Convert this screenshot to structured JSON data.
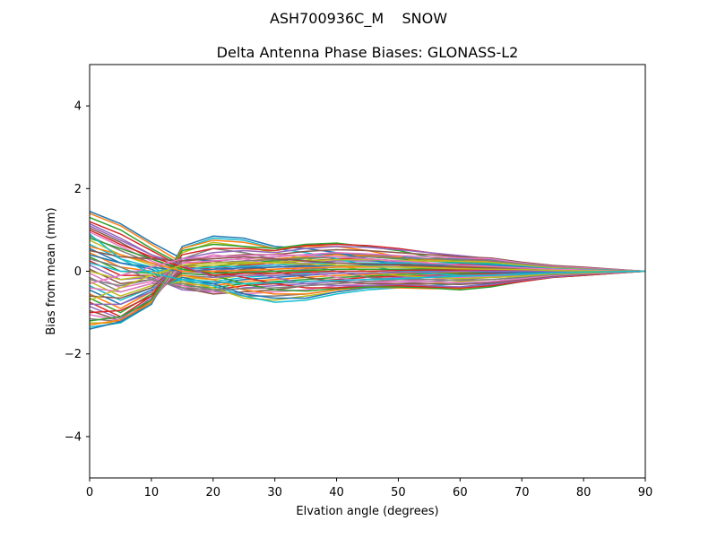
{
  "figure": {
    "suptitle": "ASH700936C_M    SNOW"
  },
  "chart_data": {
    "type": "line",
    "title": "Delta Antenna Phase Biases: GLONASS-L2",
    "xlabel": "Elvation angle (degrees)",
    "ylabel": "Bias from mean (mm)",
    "xlim": [
      0,
      90
    ],
    "ylim": [
      -5,
      5
    ],
    "xticks": [
      0,
      10,
      20,
      30,
      40,
      50,
      60,
      70,
      80,
      90
    ],
    "yticks": [
      -4,
      -2,
      0,
      2,
      4
    ],
    "ytick_labels": [
      "−4",
      "−2",
      "0",
      "2",
      "4"
    ],
    "grid": false,
    "legend": "none",
    "x": [
      0,
      5,
      10,
      15,
      20,
      25,
      30,
      35,
      40,
      45,
      50,
      55,
      60,
      65,
      70,
      75,
      80,
      85,
      90
    ],
    "colors": [
      "#1f77b4",
      "#ff7f0e",
      "#2ca02c",
      "#d62728",
      "#9467bd",
      "#8c564b",
      "#e377c2",
      "#7f7f7f",
      "#bcbd22",
      "#17becf"
    ],
    "series": [
      {
        "values": [
          1.45,
          1.15,
          0.7,
          0.3,
          0.25,
          0.3,
          0.35,
          0.4,
          0.42,
          0.4,
          0.35,
          0.3,
          0.3,
          0.28,
          0.2,
          0.12,
          0.08,
          0.04,
          0.0
        ]
      },
      {
        "values": [
          1.4,
          1.1,
          0.65,
          0.2,
          0.2,
          0.25,
          0.3,
          0.35,
          0.4,
          0.38,
          0.33,
          0.28,
          0.25,
          0.25,
          0.18,
          0.1,
          0.07,
          0.03,
          0.0
        ]
      },
      {
        "values": [
          1.3,
          1.0,
          0.55,
          0.15,
          0.1,
          0.2,
          0.25,
          0.3,
          0.35,
          0.35,
          0.3,
          0.25,
          0.22,
          0.2,
          0.15,
          0.1,
          0.05,
          0.02,
          0.0
        ]
      },
      {
        "values": [
          1.2,
          0.9,
          0.5,
          0.1,
          0.05,
          0.15,
          0.2,
          0.25,
          0.3,
          0.3,
          0.25,
          0.2,
          0.18,
          0.15,
          0.12,
          0.08,
          0.04,
          0.02,
          0.0
        ]
      },
      {
        "values": [
          1.15,
          0.8,
          0.4,
          0.05,
          0.0,
          0.1,
          0.15,
          0.2,
          0.25,
          0.25,
          0.22,
          0.18,
          0.15,
          0.12,
          0.1,
          0.06,
          0.03,
          0.01,
          0.0
        ]
      },
      {
        "values": [
          1.05,
          0.7,
          0.3,
          0.0,
          -0.05,
          0.05,
          0.1,
          0.15,
          0.2,
          0.2,
          0.18,
          0.15,
          0.12,
          0.1,
          0.08,
          0.05,
          0.02,
          0.01,
          0.0
        ]
      },
      {
        "values": [
          0.95,
          0.6,
          0.25,
          -0.05,
          -0.1,
          0.0,
          0.05,
          0.1,
          0.15,
          0.15,
          0.14,
          0.12,
          0.1,
          0.08,
          0.06,
          0.04,
          0.02,
          0.01,
          0.0
        ]
      },
      {
        "values": [
          0.85,
          0.5,
          0.2,
          -0.1,
          -0.15,
          -0.05,
          0.0,
          0.05,
          0.1,
          0.1,
          0.1,
          0.08,
          0.08,
          0.06,
          0.05,
          0.03,
          0.01,
          0.0,
          0.0
        ]
      },
      {
        "values": [
          0.75,
          0.4,
          0.15,
          -0.15,
          -0.2,
          -0.1,
          -0.05,
          0.0,
          0.05,
          0.05,
          0.05,
          0.05,
          0.05,
          0.04,
          0.03,
          0.02,
          0.01,
          0.0,
          0.0
        ]
      },
      {
        "values": [
          0.65,
          0.3,
          0.1,
          -0.2,
          -0.25,
          -0.15,
          -0.1,
          -0.05,
          0.0,
          0.0,
          0.02,
          0.02,
          0.02,
          0.02,
          0.02,
          0.01,
          0.0,
          0.0,
          0.0
        ]
      },
      {
        "values": [
          0.55,
          0.2,
          0.05,
          -0.25,
          -0.3,
          -0.2,
          -0.15,
          -0.1,
          -0.05,
          -0.05,
          -0.02,
          -0.01,
          0.0,
          0.0,
          0.0,
          0.0,
          0.0,
          0.0,
          0.0
        ]
      },
      {
        "values": [
          0.45,
          0.1,
          0.0,
          -0.3,
          -0.35,
          -0.25,
          -0.2,
          -0.15,
          -0.1,
          -0.08,
          -0.05,
          -0.03,
          -0.02,
          -0.02,
          -0.02,
          -0.01,
          -0.01,
          0.0,
          0.0
        ]
      },
      {
        "values": [
          0.35,
          0.0,
          -0.05,
          -0.35,
          -0.4,
          -0.3,
          -0.25,
          -0.2,
          -0.15,
          -0.12,
          -0.08,
          -0.06,
          -0.05,
          -0.04,
          -0.03,
          -0.02,
          -0.01,
          0.0,
          0.0
        ]
      },
      {
        "values": [
          0.25,
          -0.1,
          -0.1,
          -0.4,
          -0.45,
          -0.35,
          -0.3,
          -0.25,
          -0.2,
          -0.15,
          -0.12,
          -0.1,
          -0.08,
          -0.06,
          -0.05,
          -0.03,
          -0.02,
          -0.01,
          0.0
        ]
      },
      {
        "values": [
          0.15,
          -0.2,
          -0.15,
          -0.45,
          -0.5,
          -0.4,
          -0.35,
          -0.3,
          -0.25,
          -0.2,
          -0.15,
          -0.12,
          -0.1,
          -0.08,
          -0.06,
          -0.04,
          -0.02,
          -0.01,
          0.0
        ]
      },
      {
        "values": [
          0.05,
          -0.3,
          -0.2,
          -0.4,
          -0.55,
          -0.5,
          -0.45,
          -0.35,
          -0.3,
          -0.25,
          -0.2,
          -0.15,
          -0.12,
          -0.1,
          -0.08,
          -0.05,
          -0.03,
          -0.01,
          0.0
        ]
      },
      {
        "values": [
          -0.05,
          -0.4,
          -0.25,
          -0.35,
          -0.5,
          -0.55,
          -0.5,
          -0.45,
          -0.35,
          -0.3,
          -0.25,
          -0.2,
          -0.15,
          -0.12,
          -0.1,
          -0.06,
          -0.04,
          -0.02,
          0.0
        ]
      },
      {
        "values": [
          -0.15,
          -0.5,
          -0.3,
          -0.3,
          -0.45,
          -0.6,
          -0.6,
          -0.55,
          -0.45,
          -0.35,
          -0.3,
          -0.25,
          -0.2,
          -0.15,
          -0.12,
          -0.08,
          -0.05,
          -0.02,
          0.0
        ]
      },
      {
        "values": [
          -0.25,
          -0.6,
          -0.35,
          -0.25,
          -0.4,
          -0.65,
          -0.7,
          -0.6,
          -0.5,
          -0.4,
          -0.35,
          -0.3,
          -0.25,
          -0.2,
          -0.15,
          -0.1,
          -0.06,
          -0.03,
          0.0
        ]
      },
      {
        "values": [
          -0.35,
          -0.7,
          -0.4,
          -0.2,
          -0.35,
          -0.6,
          -0.75,
          -0.7,
          -0.55,
          -0.45,
          -0.4,
          -0.35,
          -0.3,
          -0.25,
          -0.18,
          -0.12,
          -0.08,
          -0.04,
          0.0
        ]
      },
      {
        "values": [
          -0.45,
          -0.8,
          -0.45,
          -0.15,
          -0.3,
          -0.55,
          -0.65,
          -0.65,
          -0.5,
          -0.4,
          -0.38,
          -0.4,
          -0.38,
          -0.3,
          -0.2,
          -0.12,
          -0.08,
          -0.04,
          0.0
        ]
      },
      {
        "values": [
          -0.55,
          -0.9,
          -0.5,
          -0.1,
          -0.2,
          -0.45,
          -0.55,
          -0.55,
          -0.45,
          -0.38,
          -0.4,
          -0.42,
          -0.42,
          -0.35,
          -0.22,
          -0.14,
          -0.1,
          -0.05,
          0.0
        ]
      },
      {
        "values": [
          -0.65,
          -1.0,
          -0.55,
          -0.05,
          -0.1,
          -0.3,
          -0.45,
          -0.48,
          -0.42,
          -0.38,
          -0.38,
          -0.4,
          -0.45,
          -0.38,
          -0.25,
          -0.15,
          -0.1,
          -0.05,
          0.0
        ]
      },
      {
        "values": [
          -0.75,
          -1.1,
          -0.6,
          0.0,
          0.0,
          -0.15,
          -0.3,
          -0.4,
          -0.4,
          -0.35,
          -0.35,
          -0.38,
          -0.4,
          -0.35,
          -0.25,
          -0.15,
          -0.1,
          -0.05,
          0.0
        ]
      },
      {
        "values": [
          -0.85,
          -1.15,
          -0.65,
          0.05,
          0.1,
          0.0,
          -0.15,
          -0.3,
          -0.35,
          -0.35,
          -0.32,
          -0.35,
          -0.38,
          -0.32,
          -0.22,
          -0.14,
          -0.08,
          -0.04,
          0.0
        ]
      },
      {
        "values": [
          -0.95,
          -1.2,
          -0.7,
          0.1,
          0.25,
          0.15,
          0.0,
          -0.15,
          -0.25,
          -0.3,
          -0.3,
          -0.3,
          -0.32,
          -0.28,
          -0.2,
          -0.12,
          -0.07,
          -0.03,
          0.0
        ]
      },
      {
        "values": [
          -1.05,
          -1.2,
          -0.75,
          0.2,
          0.4,
          0.3,
          0.15,
          0.0,
          -0.15,
          -0.25,
          -0.25,
          -0.25,
          -0.28,
          -0.25,
          -0.18,
          -0.1,
          -0.06,
          -0.03,
          0.0
        ]
      },
      {
        "values": [
          -1.15,
          -1.22,
          -0.75,
          0.3,
          0.55,
          0.45,
          0.3,
          0.15,
          0.0,
          -0.15,
          -0.2,
          -0.2,
          -0.22,
          -0.2,
          -0.15,
          -0.08,
          -0.05,
          -0.02,
          0.0
        ]
      },
      {
        "values": [
          -1.25,
          -1.25,
          -0.78,
          0.45,
          0.7,
          0.6,
          0.45,
          0.3,
          0.15,
          0.0,
          -0.1,
          -0.15,
          -0.18,
          -0.15,
          -0.12,
          -0.06,
          -0.04,
          -0.02,
          0.0
        ]
      },
      {
        "values": [
          -1.35,
          -1.25,
          -0.8,
          0.55,
          0.8,
          0.75,
          0.55,
          0.45,
          0.3,
          0.15,
          0.0,
          -0.05,
          -0.1,
          -0.1,
          -0.08,
          -0.04,
          -0.02,
          -0.01,
          0.0
        ]
      },
      {
        "values": [
          -1.4,
          -1.22,
          -0.8,
          0.6,
          0.85,
          0.8,
          0.6,
          0.55,
          0.45,
          0.3,
          0.15,
          0.05,
          0.0,
          -0.02,
          -0.03,
          -0.02,
          -0.01,
          0.0,
          0.0
        ]
      },
      {
        "values": [
          -1.3,
          -1.18,
          -0.75,
          0.55,
          0.75,
          0.7,
          0.55,
          0.6,
          0.6,
          0.5,
          0.35,
          0.2,
          0.1,
          0.05,
          0.02,
          0.01,
          0.0,
          0.0,
          0.0
        ]
      },
      {
        "values": [
          -1.2,
          -1.1,
          -0.7,
          0.5,
          0.65,
          0.6,
          0.55,
          0.65,
          0.68,
          0.6,
          0.5,
          0.35,
          0.25,
          0.15,
          0.08,
          0.05,
          0.03,
          0.01,
          0.0
        ]
      },
      {
        "values": [
          -1.0,
          -0.95,
          -0.6,
          0.4,
          0.55,
          0.55,
          0.5,
          0.62,
          0.65,
          0.62,
          0.55,
          0.45,
          0.35,
          0.25,
          0.15,
          0.1,
          0.06,
          0.03,
          0.0
        ]
      },
      {
        "values": [
          -0.8,
          -0.8,
          -0.5,
          0.3,
          0.45,
          0.5,
          0.45,
          0.55,
          0.6,
          0.58,
          0.52,
          0.45,
          0.38,
          0.3,
          0.2,
          0.12,
          0.08,
          0.04,
          0.0
        ]
      },
      {
        "values": [
          -0.6,
          -0.65,
          -0.4,
          0.25,
          0.35,
          0.4,
          0.4,
          0.48,
          0.52,
          0.5,
          0.45,
          0.4,
          0.35,
          0.32,
          0.22,
          0.14,
          0.1,
          0.05,
          0.0
        ]
      },
      {
        "values": [
          -0.4,
          -0.5,
          -0.3,
          0.2,
          0.25,
          0.3,
          0.35,
          0.4,
          0.45,
          0.42,
          0.38,
          0.35,
          0.32,
          0.3,
          0.2,
          0.12,
          0.08,
          0.04,
          0.0
        ]
      },
      {
        "values": [
          -0.2,
          -0.35,
          -0.2,
          0.15,
          0.2,
          0.25,
          0.28,
          0.32,
          0.35,
          0.35,
          0.32,
          0.3,
          0.28,
          0.26,
          0.18,
          0.1,
          0.06,
          0.03,
          0.0
        ]
      },
      {
        "values": [
          0.0,
          -0.2,
          -0.1,
          0.1,
          0.15,
          0.18,
          0.22,
          0.25,
          0.28,
          0.28,
          0.26,
          0.25,
          0.24,
          0.22,
          0.15,
          0.08,
          0.05,
          0.02,
          0.0
        ]
      },
      {
        "values": [
          0.2,
          0.0,
          0.0,
          0.05,
          0.1,
          0.12,
          0.15,
          0.18,
          0.2,
          0.2,
          0.2,
          0.2,
          0.2,
          0.18,
          0.12,
          0.06,
          0.04,
          0.02,
          0.0
        ]
      },
      {
        "values": [
          0.4,
          0.2,
          0.1,
          0.0,
          0.05,
          0.08,
          0.1,
          0.12,
          0.14,
          0.15,
          0.15,
          0.15,
          0.15,
          0.14,
          0.1,
          0.05,
          0.03,
          0.01,
          0.0
        ]
      },
      {
        "values": [
          0.6,
          0.4,
          0.2,
          0.0,
          0.0,
          0.02,
          0.05,
          0.08,
          0.1,
          0.1,
          0.1,
          0.1,
          0.1,
          0.1,
          0.08,
          0.04,
          0.02,
          0.01,
          0.0
        ]
      },
      {
        "values": [
          0.8,
          0.55,
          0.3,
          0.05,
          -0.05,
          -0.02,
          0.0,
          0.02,
          0.05,
          0.05,
          0.05,
          0.06,
          0.06,
          0.06,
          0.05,
          0.03,
          0.02,
          0.01,
          0.0
        ]
      },
      {
        "values": [
          1.0,
          0.65,
          0.35,
          0.1,
          -0.1,
          -0.05,
          -0.05,
          -0.02,
          0.0,
          0.0,
          0.02,
          0.03,
          0.03,
          0.03,
          0.03,
          0.02,
          0.01,
          0.0,
          0.0
        ]
      },
      {
        "values": [
          1.1,
          0.75,
          0.4,
          0.15,
          -0.15,
          -0.1,
          -0.1,
          -0.08,
          -0.05,
          -0.05,
          -0.03,
          -0.02,
          0.0,
          0.0,
          0.0,
          0.0,
          0.0,
          0.0,
          0.0
        ]
      },
      {
        "values": [
          0.5,
          0.35,
          0.3,
          0.25,
          0.3,
          0.35,
          0.3,
          0.25,
          0.2,
          0.18,
          0.15,
          0.12,
          0.1,
          0.08,
          0.06,
          0.04,
          0.02,
          0.01,
          0.0
        ]
      },
      {
        "values": [
          -0.3,
          -0.1,
          0.1,
          0.3,
          0.35,
          0.38,
          0.4,
          0.38,
          0.35,
          0.3,
          0.25,
          0.2,
          0.15,
          0.12,
          0.08,
          0.05,
          0.03,
          0.01,
          0.0
        ]
      },
      {
        "values": [
          0.3,
          0.1,
          -0.2,
          -0.4,
          -0.45,
          -0.42,
          -0.4,
          -0.35,
          -0.3,
          -0.25,
          -0.2,
          -0.15,
          -0.12,
          -0.1,
          -0.07,
          -0.04,
          -0.02,
          -0.01,
          0.0
        ]
      },
      {
        "values": [
          -0.7,
          -0.4,
          -0.1,
          0.15,
          0.2,
          0.22,
          0.2,
          0.18,
          0.15,
          0.12,
          0.1,
          0.08,
          0.06,
          0.05,
          0.04,
          0.02,
          0.01,
          0.0,
          0.0
        ]
      },
      {
        "values": [
          0.9,
          0.3,
          -0.05,
          -0.2,
          -0.25,
          -0.3,
          -0.28,
          -0.25,
          -0.22,
          -0.2,
          -0.18,
          -0.15,
          -0.12,
          -0.1,
          -0.06,
          -0.04,
          -0.02,
          -0.01,
          0.0
        ]
      }
    ]
  }
}
